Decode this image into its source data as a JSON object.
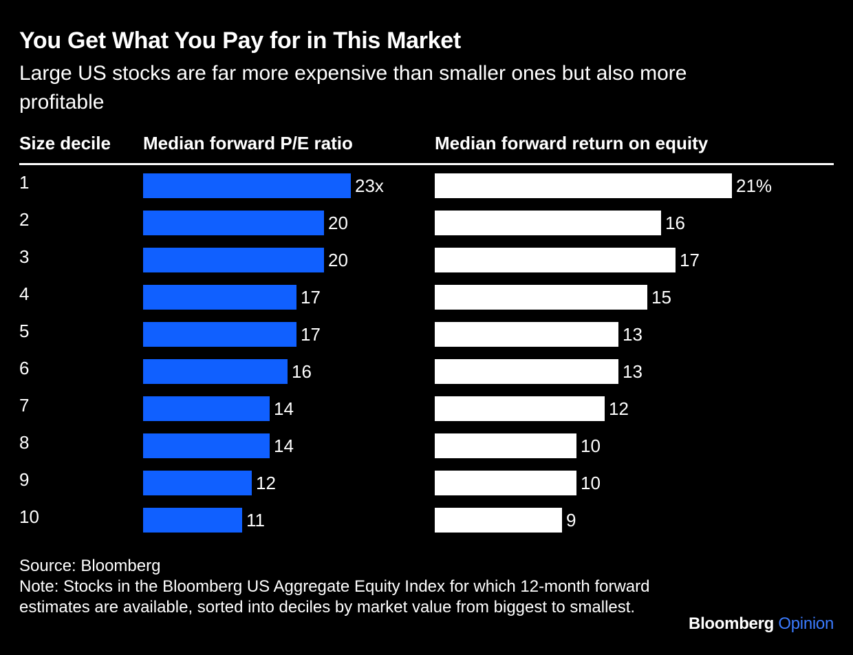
{
  "title": "You Get What You Pay for in This Market",
  "subtitle": "Large US stocks are far more expensive than smaller ones but also more profitable",
  "chart_data": {
    "type": "bar",
    "orientation": "horizontal",
    "categories": [
      "1",
      "2",
      "3",
      "4",
      "5",
      "6",
      "7",
      "8",
      "9",
      "10"
    ],
    "category_header": "Size decile",
    "series": [
      {
        "name": "Median forward P/E ratio",
        "values": [
          23,
          20,
          20,
          17,
          17,
          16,
          14,
          14,
          12,
          11
        ],
        "labels": [
          "23x",
          "20",
          "20",
          "17",
          "17",
          "16",
          "14",
          "14",
          "12",
          "11"
        ],
        "color": "#1060ff",
        "xlim": [
          0,
          23
        ]
      },
      {
        "name": "Median forward return on equity",
        "values": [
          21,
          16,
          17,
          15,
          13,
          13,
          12,
          10,
          10,
          9
        ],
        "labels": [
          "21%",
          "16",
          "17",
          "15",
          "13",
          "13",
          "12",
          "10",
          "10",
          "9"
        ],
        "color": "#ffffff",
        "xlim": [
          0,
          21
        ]
      }
    ]
  },
  "source": "Source: Bloomberg",
  "note": "Note: Stocks in the Bloomberg US Aggregate Equity Index for which 12-month forward estimates are available, sorted into deciles by market value from biggest to smallest.",
  "brand": {
    "name": "Bloomberg",
    "suffix": "Opinion",
    "suffix_color": "#3b7bff"
  }
}
